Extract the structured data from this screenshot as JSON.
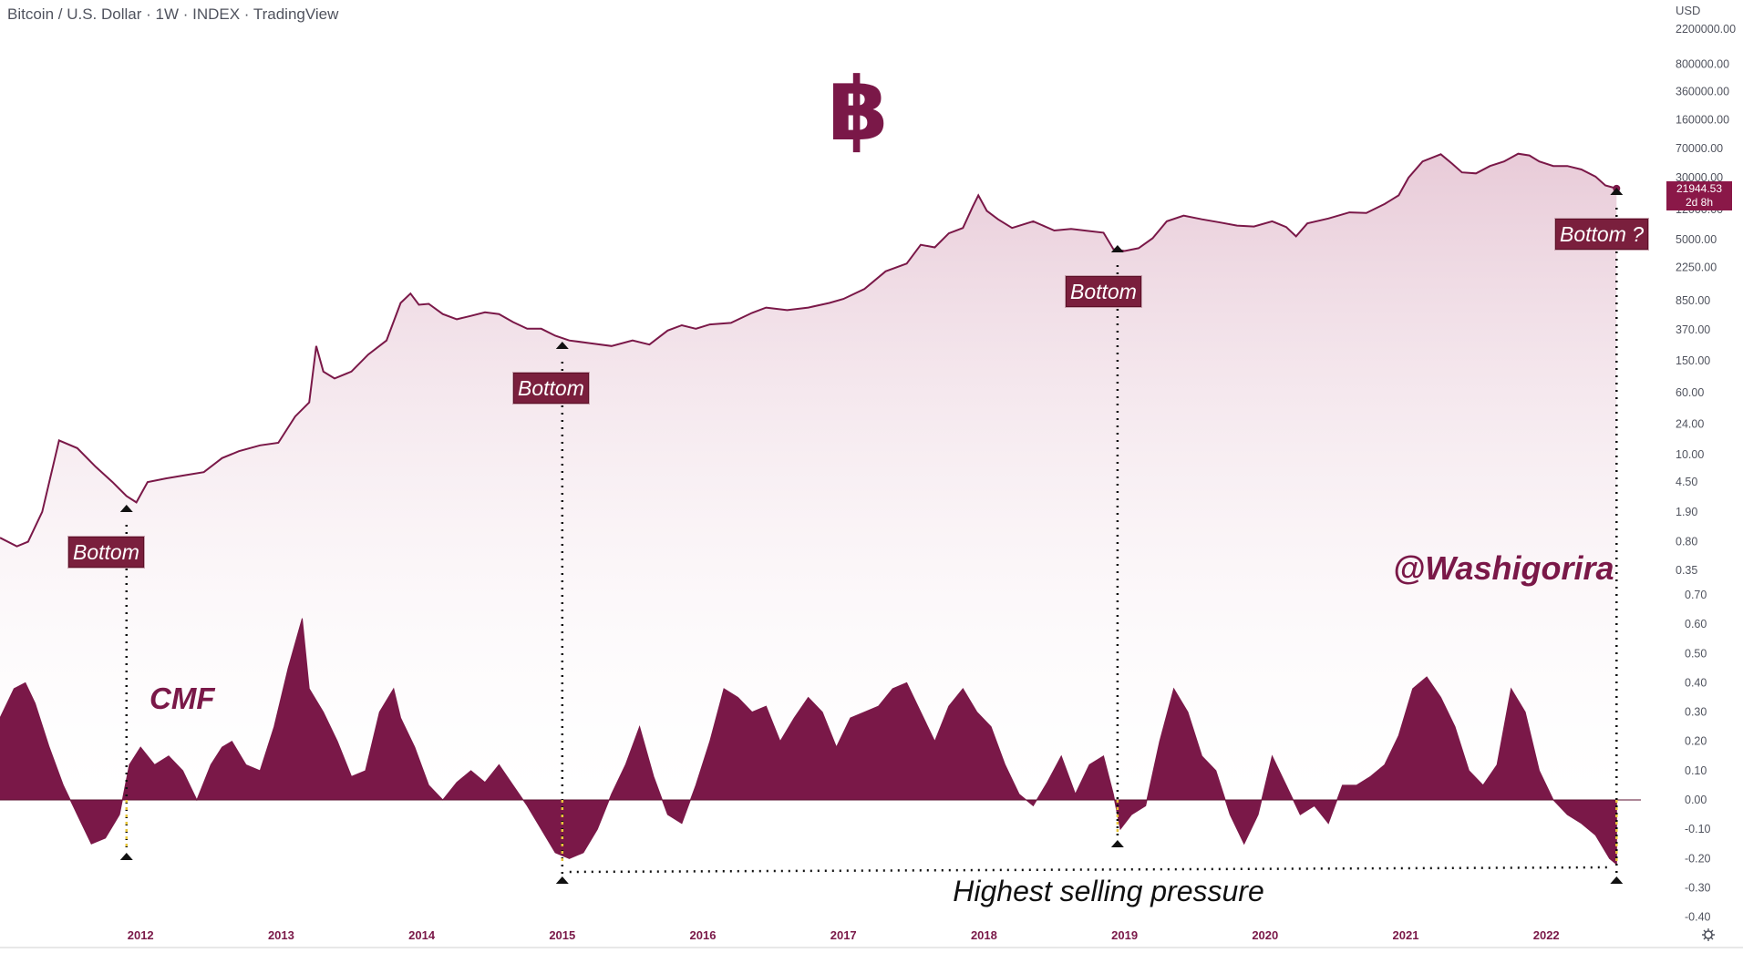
{
  "header": {
    "title": "Bitcoin / U.S. Dollar · 1W · INDEX · TradingView",
    "currency": "USD"
  },
  "logo": {
    "glyph": "฿",
    "name": "bitcoin-icon"
  },
  "price_tag": {
    "value": "21944.53",
    "countdown": "2d 8h"
  },
  "labels": {
    "watermark": "@Washigorira",
    "cmf": "CMF",
    "selling_pressure": "Highest selling pressure",
    "bottoms": [
      "Bottom",
      "Bottom",
      "Bottom",
      "Bottom ?"
    ]
  },
  "colors": {
    "accent": "#7a1848",
    "fill_top": "#ecd3df",
    "label_bg": "#7a1f3d",
    "marker": "#e7c63a"
  },
  "chart_data": [
    {
      "type": "line",
      "panel": "price",
      "scale": "log",
      "y_ticks": [
        "2200000.00",
        "800000.00",
        "360000.00",
        "160000.00",
        "70000.00",
        "30000.00",
        "12000.00",
        "5000.00",
        "2250.00",
        "850.00",
        "370.00",
        "150.00",
        "60.00",
        "24.00",
        "10.00",
        "4.50",
        "1.90",
        "0.80",
        "0.35"
      ],
      "x_ticks": [
        "2012",
        "2013",
        "2014",
        "2015",
        "2016",
        "2017",
        "2018",
        "2019",
        "2020",
        "2021",
        "2022"
      ],
      "series": [
        {
          "x": [
            2011.0,
            2011.12,
            2011.2,
            2011.3,
            2011.42,
            2011.55,
            2011.68,
            2011.8,
            2011.9,
            2011.97,
            2012.05,
            2012.18,
            2012.32,
            2012.45,
            2012.58,
            2012.7,
            2012.85,
            2012.98,
            2013.1,
            2013.2,
            2013.25,
            2013.3,
            2013.38,
            2013.5,
            2013.62,
            2013.75,
            2013.85,
            2013.92,
            2013.98,
            2014.05,
            2014.15,
            2014.25,
            2014.35,
            2014.45,
            2014.55,
            2014.65,
            2014.75,
            2014.85,
            2014.95,
            2015.05,
            2015.2,
            2015.35,
            2015.5,
            2015.62,
            2015.75,
            2015.85,
            2015.95,
            2016.05,
            2016.2,
            2016.35,
            2016.45,
            2016.6,
            2016.75,
            2016.9,
            2017.0,
            2017.15,
            2017.3,
            2017.45,
            2017.55,
            2017.65,
            2017.75,
            2017.85,
            2017.92,
            2017.96,
            2018.02,
            2018.1,
            2018.2,
            2018.35,
            2018.5,
            2018.62,
            2018.75,
            2018.85,
            2018.92,
            2019.0,
            2019.1,
            2019.2,
            2019.3,
            2019.42,
            2019.55,
            2019.68,
            2019.8,
            2019.92,
            2020.05,
            2020.15,
            2020.22,
            2020.3,
            2020.45,
            2020.6,
            2020.72,
            2020.85,
            2020.95,
            2021.02,
            2021.12,
            2021.25,
            2021.33,
            2021.4,
            2021.5,
            2021.6,
            2021.7,
            2021.8,
            2021.88,
            2021.95,
            2022.05,
            2022.15,
            2022.25,
            2022.35,
            2022.42,
            2022.5
          ],
          "y": [
            0.9,
            0.7,
            0.8,
            1.9,
            15,
            12,
            7,
            4.5,
            3,
            2.5,
            4.5,
            5,
            5.5,
            6,
            9,
            11,
            13,
            14,
            30,
            45,
            230,
            110,
            90,
            110,
            180,
            270,
            800,
            1050,
            760,
            780,
            580,
            500,
            550,
            610,
            580,
            460,
            380,
            380,
            310,
            270,
            250,
            230,
            270,
            240,
            360,
            420,
            380,
            430,
            450,
            600,
            700,
            650,
            700,
            800,
            900,
            1200,
            2000,
            2500,
            4300,
            4000,
            6000,
            7000,
            13000,
            18000,
            11500,
            9000,
            7000,
            8500,
            6500,
            6800,
            6400,
            6100,
            3800,
            3600,
            3900,
            5200,
            8500,
            10000,
            9000,
            8200,
            7500,
            7300,
            8500,
            7200,
            5500,
            8000,
            9200,
            11000,
            10800,
            14000,
            18000,
            30000,
            48000,
            59000,
            45000,
            35000,
            34000,
            42000,
            48000,
            60000,
            57000,
            48000,
            42000,
            42000,
            38000,
            31000,
            24000,
            21944.53
          ]
        }
      ],
      "annotations": [
        {
          "text": "Bottom",
          "x": 2011.9,
          "y": 2.5
        },
        {
          "text": "Bottom",
          "x": 2015.0,
          "y": 230
        },
        {
          "text": "Bottom",
          "x": 2018.95,
          "y": 3200
        },
        {
          "text": "Bottom ?",
          "x": 2022.5,
          "y": 17600
        }
      ]
    },
    {
      "type": "area",
      "panel": "cmf",
      "title": "CMF",
      "ylim": [
        -0.4,
        0.7
      ],
      "y_ticks": [
        "0.70",
        "0.60",
        "0.50",
        "0.40",
        "0.30",
        "0.20",
        "0.10",
        "0.00",
        "-0.10",
        "-0.20",
        "-0.30",
        "-0.40"
      ],
      "series": [
        {
          "x": [
            2011.0,
            2011.1,
            2011.18,
            2011.25,
            2011.35,
            2011.45,
            2011.55,
            2011.65,
            2011.75,
            2011.85,
            2011.92,
            2012.0,
            2012.1,
            2012.2,
            2012.3,
            2012.4,
            2012.5,
            2012.58,
            2012.65,
            2012.75,
            2012.85,
            2012.95,
            2013.05,
            2013.15,
            2013.2,
            2013.3,
            2013.4,
            2013.5,
            2013.6,
            2013.7,
            2013.8,
            2013.85,
            2013.95,
            2014.05,
            2014.15,
            2014.25,
            2014.35,
            2014.45,
            2014.55,
            2014.65,
            2014.75,
            2014.85,
            2014.95,
            2015.05,
            2015.15,
            2015.25,
            2015.35,
            2015.45,
            2015.55,
            2015.65,
            2015.75,
            2015.85,
            2015.95,
            2016.05,
            2016.15,
            2016.25,
            2016.35,
            2016.45,
            2016.55,
            2016.65,
            2016.75,
            2016.85,
            2016.95,
            2017.05,
            2017.15,
            2017.25,
            2017.35,
            2017.45,
            2017.55,
            2017.65,
            2017.75,
            2017.85,
            2017.95,
            2018.05,
            2018.15,
            2018.25,
            2018.35,
            2018.45,
            2018.55,
            2018.65,
            2018.75,
            2018.85,
            2018.92,
            2018.97,
            2019.05,
            2019.15,
            2019.25,
            2019.35,
            2019.45,
            2019.55,
            2019.65,
            2019.75,
            2019.85,
            2019.95,
            2020.05,
            2020.15,
            2020.25,
            2020.35,
            2020.45,
            2020.55,
            2020.65,
            2020.75,
            2020.85,
            2020.95,
            2021.05,
            2021.15,
            2021.25,
            2021.35,
            2021.45,
            2021.55,
            2021.65,
            2021.75,
            2021.85,
            2021.95,
            2022.05,
            2022.15,
            2022.25,
            2022.35,
            2022.45,
            2022.5
          ],
          "y": [
            0.28,
            0.38,
            0.4,
            0.33,
            0.18,
            0.05,
            -0.05,
            -0.15,
            -0.13,
            -0.05,
            0.12,
            0.18,
            0.12,
            0.15,
            0.1,
            0.0,
            0.12,
            0.18,
            0.2,
            0.12,
            0.1,
            0.25,
            0.45,
            0.62,
            0.38,
            0.3,
            0.2,
            0.08,
            0.1,
            0.3,
            0.38,
            0.28,
            0.18,
            0.05,
            0.0,
            0.06,
            0.1,
            0.06,
            0.12,
            0.05,
            -0.02,
            -0.1,
            -0.18,
            -0.2,
            -0.18,
            -0.1,
            0.02,
            0.12,
            0.25,
            0.08,
            -0.05,
            -0.08,
            0.05,
            0.2,
            0.38,
            0.35,
            0.3,
            0.32,
            0.2,
            0.28,
            0.35,
            0.3,
            0.18,
            0.28,
            0.3,
            0.32,
            0.38,
            0.4,
            0.3,
            0.2,
            0.32,
            0.38,
            0.3,
            0.25,
            0.12,
            0.02,
            -0.02,
            0.06,
            0.15,
            0.02,
            0.12,
            0.15,
            0.02,
            -0.1,
            -0.05,
            -0.02,
            0.2,
            0.38,
            0.3,
            0.15,
            0.1,
            -0.05,
            -0.15,
            -0.05,
            0.15,
            0.05,
            -0.05,
            -0.02,
            -0.08,
            0.05,
            0.05,
            0.08,
            0.12,
            0.22,
            0.38,
            0.42,
            0.35,
            0.25,
            0.1,
            0.05,
            0.12,
            0.38,
            0.3,
            0.1,
            0.0,
            -0.05,
            -0.08,
            -0.12,
            -0.2,
            -0.22
          ]
        }
      ]
    }
  ]
}
